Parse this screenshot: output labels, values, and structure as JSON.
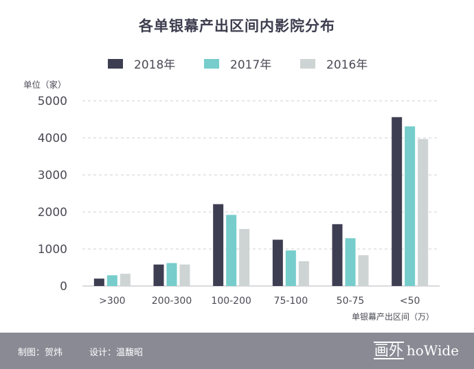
{
  "chart_data": {
    "type": "bar",
    "title": "各单银幕产出区间内影院分布",
    "ylabel": "单位（家）",
    "xlabel": "单银幕产出区间（万）",
    "categories": [
      ">300",
      "200-300",
      "100-200",
      "75-100",
      "50-75",
      "<50"
    ],
    "series": [
      {
        "name": "2018年",
        "color": "#3e3e52",
        "values": [
          200,
          580,
          2210,
          1250,
          1670,
          4560
        ]
      },
      {
        "name": "2017年",
        "color": "#76cdcb",
        "values": [
          290,
          620,
          1920,
          960,
          1290,
          4310
        ]
      },
      {
        "name": "2016年",
        "color": "#ced3d3",
        "values": [
          330,
          580,
          1540,
          670,
          830,
          3970
        ]
      }
    ],
    "ylim": [
      0,
      5000
    ],
    "yticks": [
      "0",
      "1000",
      "2000",
      "3000",
      "4000",
      "5000"
    ],
    "grid": true,
    "legend_position": "top"
  },
  "footer": {
    "producer": "制图：贺炜",
    "designer": "设计：温馥昭",
    "logo_cn": "画外",
    "logo_en": "hoWide"
  }
}
